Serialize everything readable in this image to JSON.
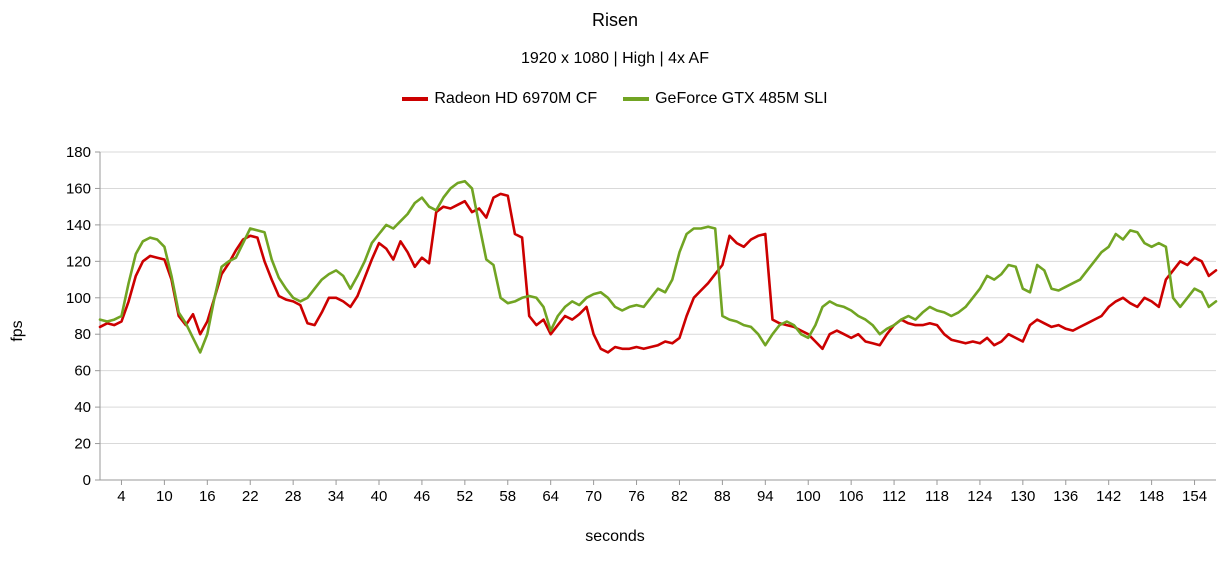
{
  "page": {
    "title": "Risen",
    "subtitle": "1920 x 1080 | High | 4x AF"
  },
  "axes": {
    "ylabel": "fps",
    "xlabel": "seconds"
  },
  "chart_data": {
    "type": "line",
    "title": "Risen",
    "subtitle": "1920 x 1080 | High | 4x AF",
    "xlabel": "seconds",
    "ylabel": "fps",
    "ylim": [
      0,
      180
    ],
    "yticks": [
      0,
      20,
      40,
      60,
      80,
      100,
      120,
      140,
      160,
      180
    ],
    "xticks": [
      4,
      10,
      16,
      22,
      28,
      34,
      40,
      46,
      52,
      58,
      64,
      70,
      76,
      82,
      88,
      94,
      100,
      106,
      112,
      118,
      124,
      130,
      136,
      142,
      148,
      154
    ],
    "x_start": 1,
    "x_step": 1,
    "x_end": 157,
    "grid": "horizontal",
    "legend_position": "top",
    "grid_color": "#d9d9d9",
    "axis_color": "#999999",
    "series": [
      {
        "name": "Radeon HD 6970M CF",
        "color": "#cc0000",
        "values": [
          84,
          86,
          85,
          87,
          98,
          112,
          120,
          123,
          122,
          121,
          110,
          90,
          85,
          91,
          80,
          87,
          100,
          113,
          119,
          126,
          132,
          134,
          133,
          120,
          110,
          101,
          99,
          98,
          96,
          86,
          85,
          92,
          100,
          100,
          98,
          95,
          101,
          111,
          121,
          130,
          127,
          121,
          131,
          125,
          117,
          122,
          119,
          147,
          150,
          149,
          151,
          153,
          147,
          149,
          144,
          155,
          157,
          156,
          135,
          133,
          90,
          85,
          88,
          80,
          85,
          90,
          88,
          91,
          95,
          80,
          72,
          70,
          73,
          72,
          72,
          73,
          72,
          73,
          74,
          76,
          75,
          78,
          90,
          100,
          104,
          108,
          113,
          118,
          134,
          130,
          128,
          132,
          134,
          135,
          88,
          86,
          85,
          84,
          82,
          80,
          76,
          72,
          80,
          82,
          80,
          78,
          80,
          76,
          75,
          74,
          80,
          85,
          88,
          86,
          85,
          85,
          86,
          85,
          80,
          77,
          76,
          75,
          76,
          75,
          78,
          74,
          76,
          80,
          78,
          76,
          85,
          88,
          86,
          84,
          85,
          83,
          82,
          84,
          86,
          88,
          90,
          95,
          98,
          100,
          97,
          95,
          100,
          98,
          95,
          110,
          115,
          120,
          118,
          122,
          120,
          112,
          115
        ]
      },
      {
        "name": "GeForce GTX 485M SLI",
        "color": "#71a423",
        "values": [
          88,
          87,
          88,
          90,
          108,
          124,
          131,
          133,
          132,
          128,
          112,
          92,
          86,
          78,
          70,
          80,
          100,
          117,
          120,
          122,
          130,
          138,
          137,
          136,
          121,
          111,
          105,
          100,
          98,
          100,
          105,
          110,
          113,
          115,
          112,
          105,
          112,
          120,
          130,
          135,
          140,
          138,
          142,
          146,
          152,
          155,
          150,
          148,
          155,
          160,
          163,
          164,
          160,
          140,
          121,
          118,
          100,
          97,
          98,
          100,
          101,
          100,
          95,
          82,
          90,
          95,
          98,
          96,
          100,
          102,
          103,
          100,
          95,
          93,
          95,
          96,
          95,
          100,
          105,
          103,
          110,
          125,
          135,
          138,
          138,
          139,
          138,
          90,
          88,
          87,
          85,
          84,
          80,
          74,
          80,
          85,
          87,
          85,
          80,
          78,
          85,
          95,
          98,
          96,
          95,
          93,
          90,
          88,
          85,
          80,
          83,
          85,
          88,
          90,
          88,
          92,
          95,
          93,
          92,
          90,
          92,
          95,
          100,
          105,
          112,
          110,
          113,
          118,
          117,
          105,
          103,
          118,
          115,
          105,
          104,
          106,
          108,
          110,
          115,
          120,
          125,
          128,
          135,
          132,
          137,
          136,
          130,
          128,
          130,
          128,
          100,
          95,
          100,
          105,
          103,
          95,
          98
        ]
      }
    ]
  }
}
